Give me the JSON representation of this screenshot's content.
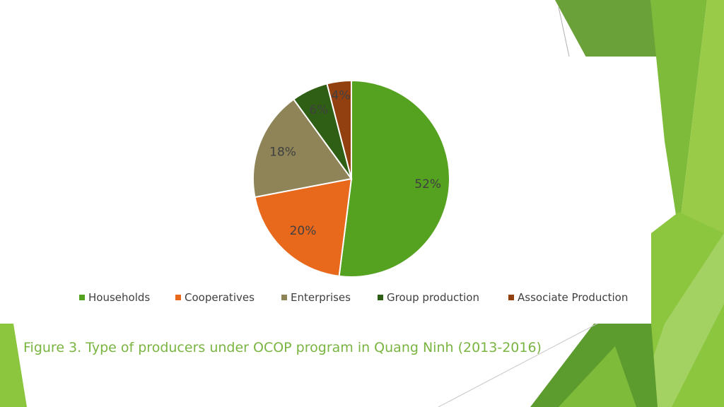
{
  "caption": "Figure 3. Type of producers under OCOP program in Quang Ninh (2013-2016)",
  "chart_data": {
    "type": "pie",
    "categories": [
      "Households",
      "Cooperatives",
      "Enterprises",
      "Group production",
      "Associate Production"
    ],
    "values": [
      52,
      20,
      18,
      6,
      4
    ],
    "data_labels": [
      "52%",
      "20%",
      "18%",
      "6%",
      "4%"
    ],
    "colors": [
      "#55a120",
      "#e8681c",
      "#8e8457",
      "#2f5f14",
      "#92400f"
    ],
    "legend_position": "bottom"
  },
  "theme": {
    "accent": "#7ab441",
    "decor_greens": [
      "#5c9b2d",
      "#8cc63f",
      "#3f7f1f",
      "#a9d36c",
      "#6aaa35"
    ]
  }
}
